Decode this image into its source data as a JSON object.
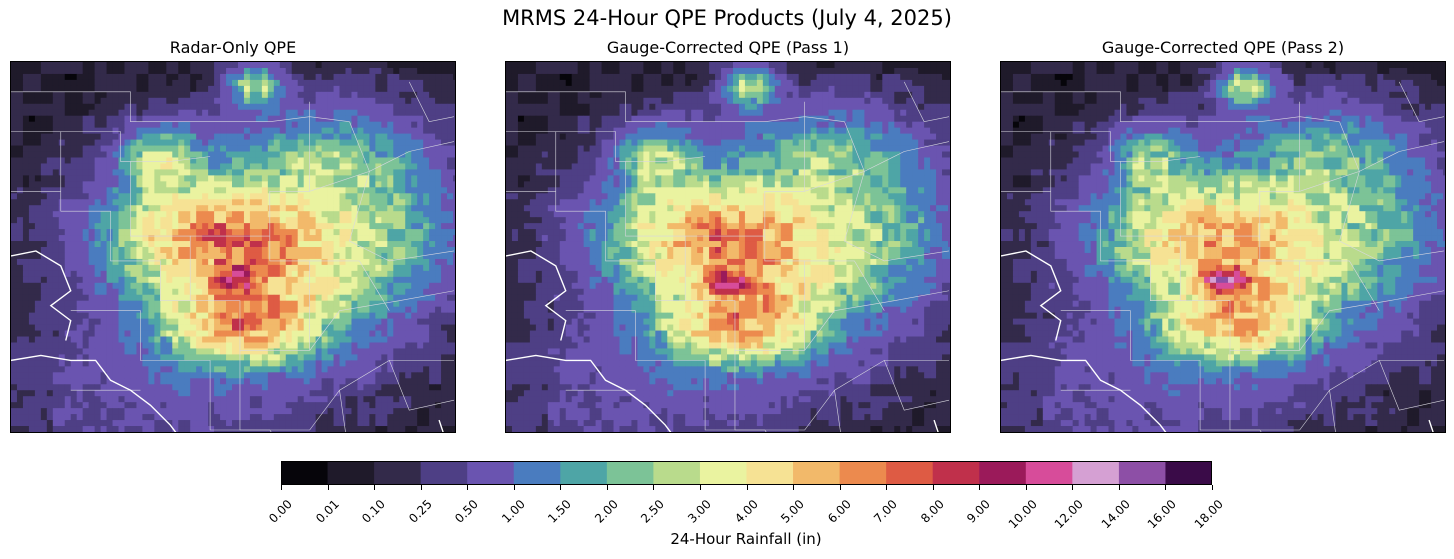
{
  "title": "MRMS 24-Hour QPE Products (July 4, 2025)",
  "panels": [
    {
      "title": "Radar-Only QPE"
    },
    {
      "title": "Gauge-Corrected QPE (Pass 1)"
    },
    {
      "title": "Gauge-Corrected QPE (Pass 2)"
    }
  ],
  "colorbar": {
    "label": "24-Hour Rainfall (in)",
    "ticks": [
      "0.00",
      "0.01",
      "0.10",
      "0.25",
      "0.50",
      "1.00",
      "1.50",
      "2.00",
      "2.50",
      "3.00",
      "4.00",
      "5.00",
      "6.00",
      "7.00",
      "8.00",
      "9.00",
      "10.00",
      "12.00",
      "14.00",
      "16.00",
      "18.00"
    ],
    "colors": [
      "#06050a",
      "#1f1a2a",
      "#332a4a",
      "#4e3f85",
      "#6a54b0",
      "#4a7cbf",
      "#4ea5a6",
      "#7cc397",
      "#b9db8c",
      "#eaf3a0",
      "#f6e294",
      "#f2b96a",
      "#ec8a4e",
      "#de5b44",
      "#c0304b",
      "#9b1a5a",
      "#d74c9a",
      "#d5a0d3",
      "#8d4fa6",
      "#3a0b48"
    ]
  }
}
